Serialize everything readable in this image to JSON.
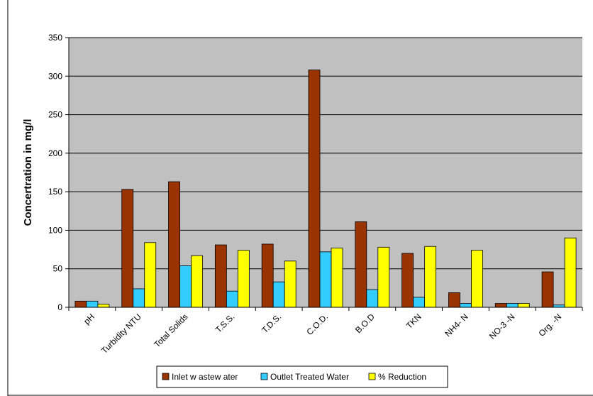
{
  "chart_data": {
    "type": "bar",
    "title": "",
    "xlabel": "",
    "ylabel": "Concertration in mg/l",
    "ylim": [
      0,
      350
    ],
    "yticks": [
      0,
      50,
      100,
      150,
      200,
      250,
      300,
      350
    ],
    "grid": true,
    "legend_position": "bottom",
    "categories": [
      "pH",
      "Turbidity NTU",
      "Total Solids",
      "T.S.S.",
      "T.D.S.",
      "C.O.D.",
      "B.O.D",
      "TKN",
      "NH4- N",
      "NO-3 -N",
      "Org. -N"
    ],
    "series": [
      {
        "name": "Inlet w astew ater",
        "color": "#993300",
        "values": [
          8,
          153,
          163,
          81,
          82,
          308,
          111,
          70,
          19,
          5,
          46
        ]
      },
      {
        "name": "Outlet Treated Water",
        "color": "#33CCFF",
        "values": [
          8,
          24,
          54,
          21,
          33,
          72,
          23,
          13,
          5,
          5,
          3
        ]
      },
      {
        "name": "% Reduction",
        "color": "#FFFF00",
        "values": [
          4,
          84,
          67,
          74,
          60,
          77,
          78,
          79,
          74,
          5,
          90
        ]
      }
    ],
    "plot_background": "#C0C0C0"
  }
}
